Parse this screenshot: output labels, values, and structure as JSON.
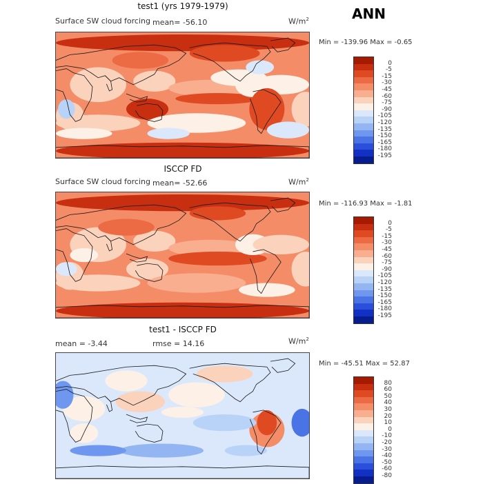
{
  "header": {
    "ann": "ANN"
  },
  "panels": [
    {
      "title": "test1 (yrs 1979-1979)",
      "subtitle": "Surface SW cloud forcing",
      "mean": "mean=  -56.10",
      "unit_base": "W/m",
      "unit_exp": "2",
      "minmax": "Min = -139.96  Max =   -0.65",
      "colorbar": {
        "levels": [
          "0",
          "-5",
          "-15",
          "-30",
          "-45",
          "-60",
          "-75",
          "-90",
          "-105",
          "-120",
          "-135",
          "-150",
          "-165",
          "-180",
          "-195"
        ],
        "colors": [
          "#a51a00",
          "#c82e10",
          "#e04a22",
          "#ec6a44",
          "#f48c68",
          "#f9ae90",
          "#fbd2bc",
          "#fdf0e6",
          "#dbe8fb",
          "#b9d2f7",
          "#93b6f3",
          "#6f97ef",
          "#4a73e6",
          "#2a4fdb",
          "#1230c4",
          "#071c8f"
        ]
      },
      "map_theme": "sw_model"
    },
    {
      "title": "ISCCP FD",
      "subtitle": "Surface SW cloud forcing",
      "mean": "mean=  -52.66",
      "unit_base": "W/m",
      "unit_exp": "2",
      "minmax": "Min = -116.93  Max =   -1.81",
      "colorbar": {
        "levels": [
          "0",
          "-5",
          "-15",
          "-30",
          "-45",
          "-60",
          "-75",
          "-90",
          "-105",
          "-120",
          "-135",
          "-150",
          "-165",
          "-180",
          "-195"
        ],
        "colors": [
          "#a51a00",
          "#c82e10",
          "#e04a22",
          "#ec6a44",
          "#f48c68",
          "#f9ae90",
          "#fbd2bc",
          "#fdf0e6",
          "#dbe8fb",
          "#b9d2f7",
          "#93b6f3",
          "#6f97ef",
          "#4a73e6",
          "#2a4fdb",
          "#1230c4",
          "#071c8f"
        ]
      },
      "map_theme": "sw_obs"
    },
    {
      "title": "test1 - ISCCP FD",
      "subtitle": "mean =    -3.44",
      "mean": "rmse =   14.16",
      "unit_base": "W/m",
      "unit_exp": "2",
      "minmax": "Min = -45.51  Max =  52.87",
      "colorbar": {
        "levels": [
          "80",
          "60",
          "50",
          "40",
          "30",
          "20",
          "10",
          "0",
          "-10",
          "-20",
          "-30",
          "-40",
          "-50",
          "-60",
          "-80"
        ],
        "colors": [
          "#a51a00",
          "#c82e10",
          "#e04a22",
          "#ec6a44",
          "#f48c68",
          "#f9ae90",
          "#fbd2bc",
          "#fdf0e6",
          "#dbe8fb",
          "#b9d2f7",
          "#93b6f3",
          "#6f97ef",
          "#4a73e6",
          "#2a4fdb",
          "#1230c4",
          "#071c8f"
        ]
      },
      "map_theme": "diff"
    }
  ],
  "chart_data": {
    "type": "heatmap",
    "title": "ANN",
    "variable": "Surface SW cloud forcing",
    "units": "W/m2",
    "panels": [
      {
        "name": "test1 (yrs 1979-1979)",
        "mean": -56.1,
        "min": -139.96,
        "max": -0.65
      },
      {
        "name": "ISCCP FD",
        "mean": -52.66,
        "min": -116.93,
        "max": -1.81
      },
      {
        "name": "test1 - ISCCP FD",
        "mean": -3.44,
        "rmse": 14.16,
        "min": -45.51,
        "max": 52.87
      }
    ]
  }
}
